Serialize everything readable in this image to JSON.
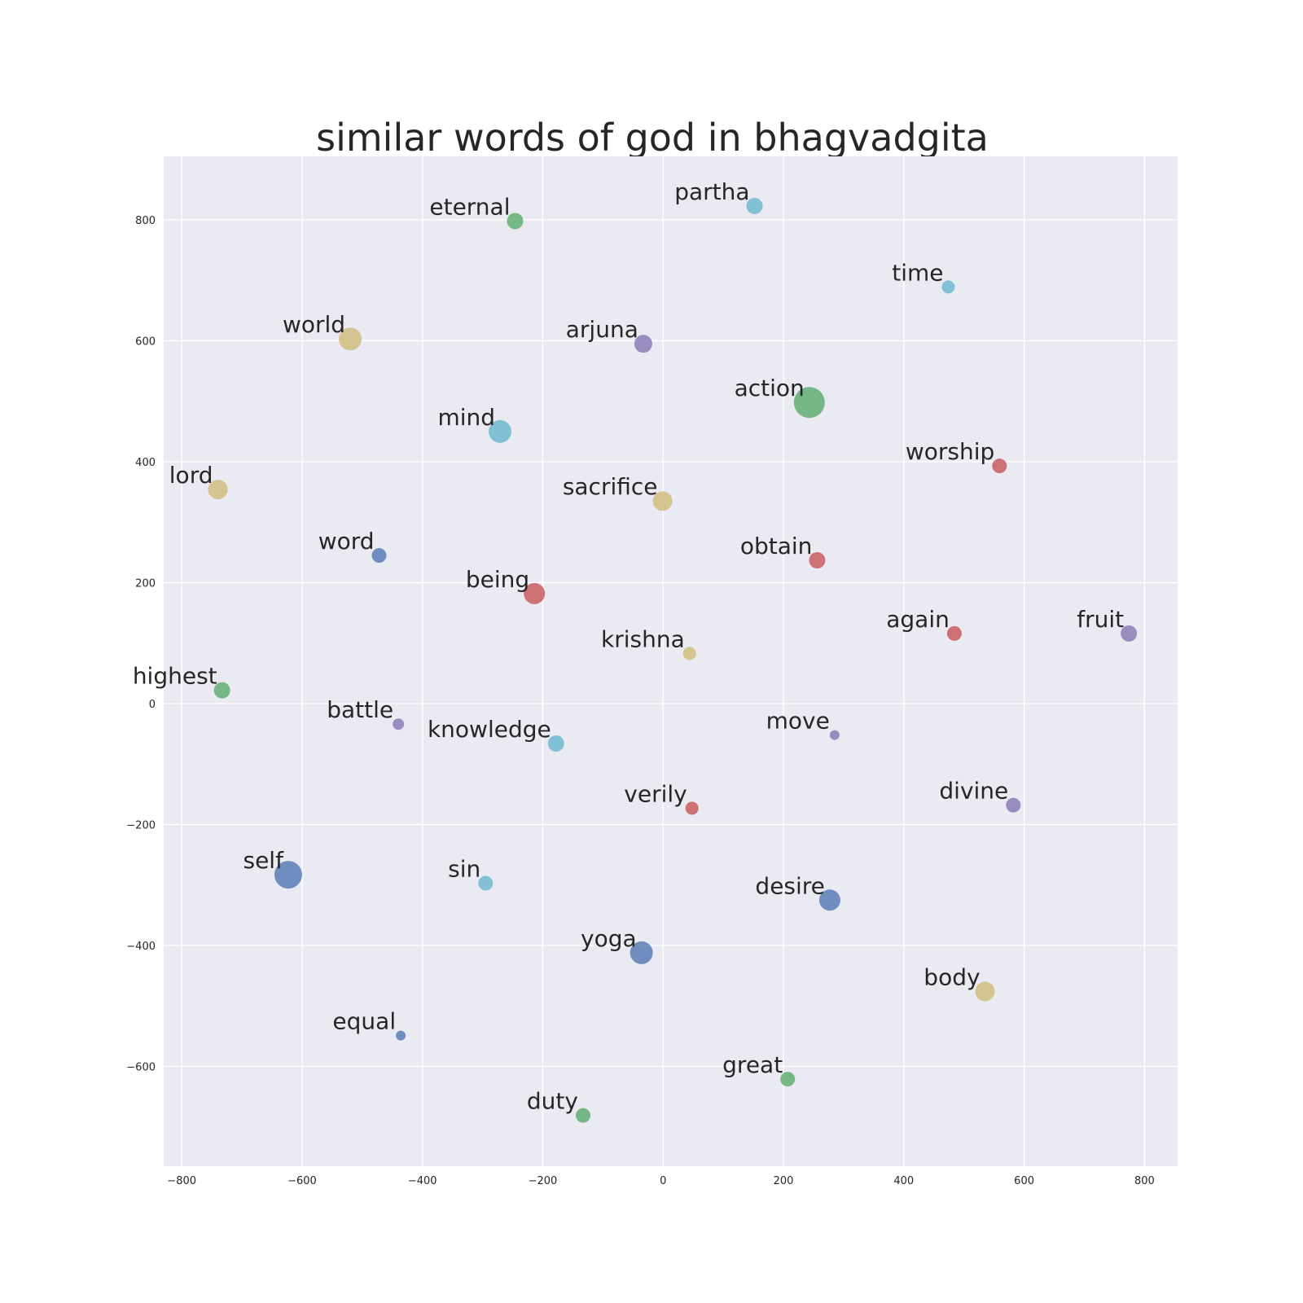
{
  "chart_data": {
    "type": "scatter",
    "title": "similar words of god in bhagvadgita",
    "xlabel": "",
    "ylabel": "",
    "xlim": [
      -830,
      855
    ],
    "ylim": [
      -765,
      905
    ],
    "xticks": [
      -800,
      -600,
      -400,
      -200,
      0,
      200,
      400,
      600,
      800
    ],
    "yticks": [
      -600,
      -400,
      -200,
      0,
      200,
      400,
      600,
      800
    ],
    "grid": true,
    "background": "#eaeaf2",
    "palette": {
      "blue": "#4c72b0",
      "green": "#55a868",
      "red": "#c44e52",
      "purple": "#8172b2",
      "gold": "#ccb974",
      "cyan": "#64b5cd"
    },
    "points": [
      {
        "label": "partha",
        "x": 152,
        "y": 823,
        "size": 10,
        "color": "cyan"
      },
      {
        "label": "eternal",
        "x": -246,
        "y": 798,
        "size": 10,
        "color": "green"
      },
      {
        "label": "time",
        "x": 474,
        "y": 689,
        "size": 8,
        "color": "cyan"
      },
      {
        "label": "world",
        "x": -520,
        "y": 603,
        "size": 14,
        "color": "gold"
      },
      {
        "label": "arjuna",
        "x": -33,
        "y": 595,
        "size": 11,
        "color": "purple"
      },
      {
        "label": "action",
        "x": 243,
        "y": 498,
        "size": 19,
        "color": "green"
      },
      {
        "label": "mind",
        "x": -271,
        "y": 450,
        "size": 14,
        "color": "cyan"
      },
      {
        "label": "worship",
        "x": 559,
        "y": 393,
        "size": 9,
        "color": "red"
      },
      {
        "label": "lord",
        "x": -740,
        "y": 354,
        "size": 12,
        "color": "gold"
      },
      {
        "label": "sacrifice",
        "x": -1,
        "y": 335,
        "size": 12,
        "color": "gold"
      },
      {
        "label": "obtain",
        "x": 256,
        "y": 237,
        "size": 10,
        "color": "red"
      },
      {
        "label": "word",
        "x": -472,
        "y": 245,
        "size": 9,
        "color": "blue"
      },
      {
        "label": "being",
        "x": -214,
        "y": 182,
        "size": 13,
        "color": "red"
      },
      {
        "label": "again",
        "x": 484,
        "y": 116,
        "size": 9,
        "color": "red"
      },
      {
        "label": "fruit",
        "x": 774,
        "y": 116,
        "size": 10,
        "color": "purple"
      },
      {
        "label": "krishna",
        "x": 44,
        "y": 83,
        "size": 8,
        "color": "gold"
      },
      {
        "label": "highest",
        "x": -733,
        "y": 22,
        "size": 10,
        "color": "green"
      },
      {
        "label": "battle",
        "x": -440,
        "y": -34,
        "size": 7,
        "color": "purple"
      },
      {
        "label": "knowledge",
        "x": -178,
        "y": -66,
        "size": 10,
        "color": "cyan"
      },
      {
        "label": "move",
        "x": 285,
        "y": -52,
        "size": 6,
        "color": "purple"
      },
      {
        "label": "verily",
        "x": 48,
        "y": -173,
        "size": 8,
        "color": "red"
      },
      {
        "label": "divine",
        "x": 582,
        "y": -168,
        "size": 9,
        "color": "purple"
      },
      {
        "label": "self",
        "x": -623,
        "y": -283,
        "size": 17,
        "color": "blue"
      },
      {
        "label": "sin",
        "x": -295,
        "y": -297,
        "size": 9,
        "color": "cyan"
      },
      {
        "label": "desire",
        "x": 277,
        "y": -325,
        "size": 13,
        "color": "blue"
      },
      {
        "label": "yoga",
        "x": -36,
        "y": -412,
        "size": 14,
        "color": "blue"
      },
      {
        "label": "body",
        "x": 535,
        "y": -476,
        "size": 12,
        "color": "gold"
      },
      {
        "label": "equal",
        "x": -436,
        "y": -549,
        "size": 6,
        "color": "blue"
      },
      {
        "label": "great",
        "x": 207,
        "y": -621,
        "size": 9,
        "color": "green"
      },
      {
        "label": "duty",
        "x": -133,
        "y": -681,
        "size": 9,
        "color": "green"
      }
    ]
  }
}
